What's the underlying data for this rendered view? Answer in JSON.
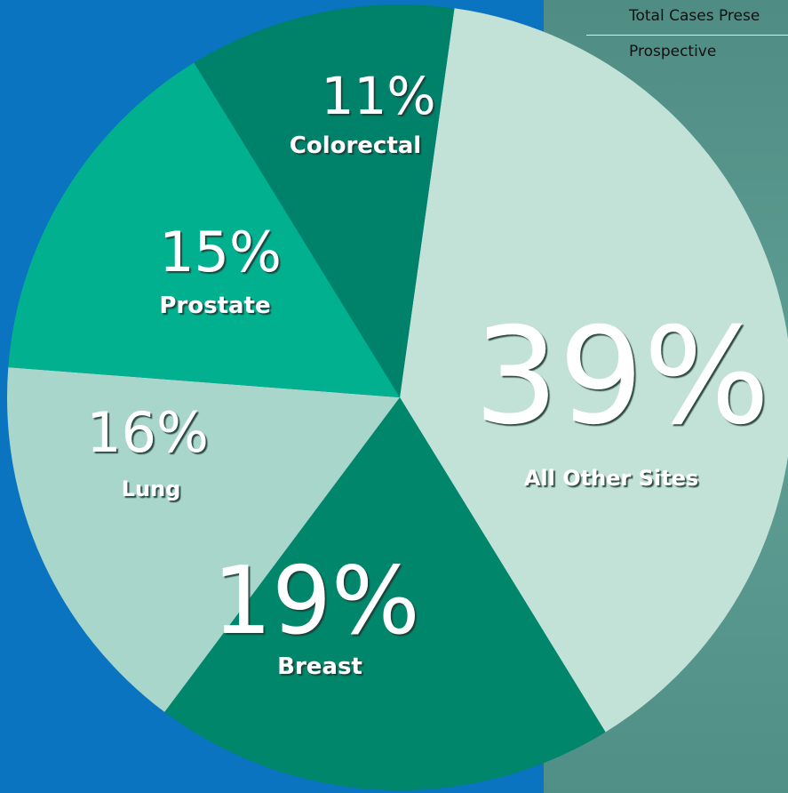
{
  "chart_data": {
    "type": "pie",
    "categories": [
      "All Other Sites",
      "Breast",
      "Lung",
      "Prostate",
      "Colorectal"
    ],
    "values": [
      39,
      19,
      16,
      15,
      11
    ],
    "value_labels": [
      "39%",
      "19%",
      "16%",
      "15%",
      "11%"
    ],
    "colors": [
      "#c2e1d7",
      "#00866a",
      "#a8d6cb",
      "#00b08f",
      "#00826a"
    ]
  },
  "background_table": {
    "rows": [
      "Total Cases Prese",
      "Prospective"
    ]
  }
}
